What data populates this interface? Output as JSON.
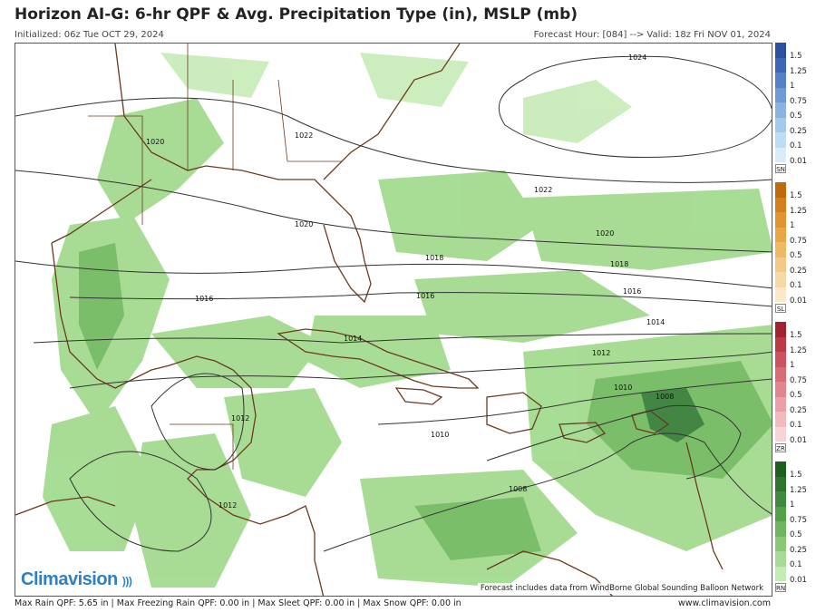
{
  "header": {
    "title": "Horizon AI-G: 6-hr QPF & Avg. Precipitation Type (in), MSLP (mb)",
    "initialized": "Initialized: 06z Tue OCT 29, 2024",
    "valid": "Forecast Hour: [084] --> Valid: 18z Fri NOV 01, 2024"
  },
  "map": {
    "isobars": [
      "1024",
      "1022",
      "1022",
      "1020",
      "1020",
      "1020",
      "1018",
      "1018",
      "1016",
      "1016",
      "1016",
      "1014",
      "1014",
      "1012",
      "1012",
      "1012",
      "1010",
      "1010",
      "1008",
      "1008"
    ],
    "watermark": "Forecast includes data from WindBorne Global Sounding Balloon Network",
    "logo": "Climavision",
    "colors": {
      "rain_light": "#9fd98a",
      "rain_mid": "#6cb85a",
      "rain_dark": "#2f7a2f",
      "coast": "#6b3a1f",
      "isobar": "#333333"
    }
  },
  "legends": [
    {
      "code": "SN",
      "ticks": [
        "1.5",
        "1.25",
        "1",
        "0.75",
        "0.5",
        "0.25",
        "0.1",
        "0.01"
      ],
      "colors": [
        "#2d4fa0",
        "#3e66b8",
        "#5581c9",
        "#6f9ad6",
        "#8ab3e0",
        "#a5c9ea",
        "#c0dcf2",
        "#dbecf8"
      ]
    },
    {
      "code": "SL",
      "ticks": [
        "1.5",
        "1.25",
        "1",
        "0.75",
        "0.5",
        "0.25",
        "0.1",
        "0.01"
      ],
      "colors": [
        "#c06a10",
        "#d37f1c",
        "#e0932e",
        "#e9a647",
        "#efb865",
        "#f3c985",
        "#f7d9a6",
        "#fbe9c8"
      ]
    },
    {
      "code": "ZR",
      "ticks": [
        "1.5",
        "1.25",
        "1",
        "0.75",
        "0.5",
        "0.25",
        "0.1",
        "0.01"
      ],
      "colors": [
        "#a3222f",
        "#bb3a45",
        "#cc535d",
        "#d86c75",
        "#e2868e",
        "#eaa0a6",
        "#f1babf",
        "#f7d4d7"
      ]
    },
    {
      "code": "RN",
      "ticks": [
        "1.5",
        "1.25",
        "1",
        "0.75",
        "0.5",
        "0.25",
        "0.1",
        "0.01"
      ],
      "colors": [
        "#1e5e1e",
        "#2e742e",
        "#3f8a3f",
        "#55a04a",
        "#6fb55f",
        "#8ac878",
        "#a7da95",
        "#c6ebb6"
      ]
    }
  ],
  "footer": {
    "stats": "Max Rain QPF: 5.65 in  |  Max Freezing Rain QPF: 0.00 in  |  Max Sleet QPF: 0.00 in  |  Max Snow QPF: 0.00 in",
    "site": "www.climavision.com"
  }
}
